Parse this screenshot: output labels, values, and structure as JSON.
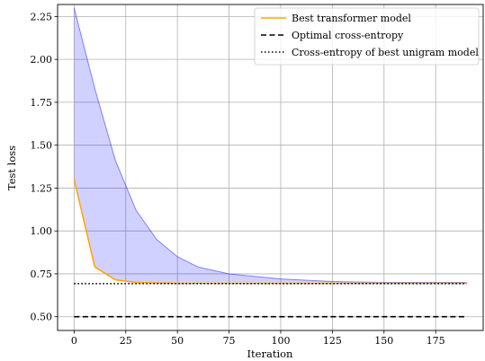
{
  "chart_data": {
    "type": "line",
    "title": "",
    "xlabel": "Iteration",
    "ylabel": "Test loss",
    "xlim": [
      -8,
      198
    ],
    "ylim": [
      0.42,
      2.32
    ],
    "x_ticks": [
      0,
      25,
      50,
      75,
      100,
      125,
      150,
      175
    ],
    "y_ticks": [
      0.5,
      0.75,
      1.0,
      1.25,
      1.5,
      1.75,
      2.0,
      2.25
    ],
    "x_tick_labels": [
      "0",
      "25",
      "50",
      "75",
      "100",
      "125",
      "150",
      "175"
    ],
    "y_tick_labels": [
      "0.50",
      "0.75",
      "1.00",
      "1.25",
      "1.50",
      "1.75",
      "2.00",
      "2.25"
    ],
    "grid": true,
    "legend_position": "top-right",
    "band": {
      "color": "#0000ff",
      "x": [
        0,
        10,
        20,
        30,
        40,
        50,
        60,
        75,
        100,
        125,
        150,
        175,
        190
      ],
      "upper": [
        2.3,
        1.83,
        1.41,
        1.12,
        0.95,
        0.85,
        0.79,
        0.75,
        0.72,
        0.705,
        0.7,
        0.7,
        0.7
      ],
      "lower": [
        1.3,
        0.79,
        0.715,
        0.7,
        0.7,
        0.7,
        0.7,
        0.7,
        0.7,
        0.7,
        0.7,
        0.7,
        0.7
      ]
    },
    "series": [
      {
        "name": "Best transformer model",
        "style": "solid",
        "color": "#ffa500",
        "x": [
          0,
          10,
          20,
          30,
          40,
          50,
          75,
          100,
          125,
          150,
          175,
          190
        ],
        "values": [
          1.3,
          0.79,
          0.715,
          0.7,
          0.697,
          0.695,
          0.695,
          0.695,
          0.695,
          0.695,
          0.695,
          0.695
        ]
      },
      {
        "name": "Optimal cross-entropy",
        "style": "dashed",
        "color": "#000000",
        "x": [
          0,
          190
        ],
        "values": [
          0.5,
          0.5
        ]
      },
      {
        "name": "Cross-entropy of best unigram model",
        "style": "dotted",
        "color": "#000000",
        "x": [
          0,
          190
        ],
        "values": [
          0.693,
          0.693
        ]
      }
    ]
  }
}
